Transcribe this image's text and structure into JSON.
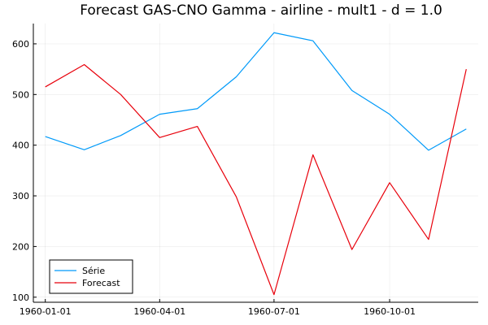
{
  "chart_data": {
    "type": "line",
    "title": "Forecast GAS-CNO Gamma - airline - mult1 - d = 1.0",
    "xlabel": "",
    "ylabel": "",
    "x": [
      "1960-01-01",
      "1960-02-01",
      "1960-03-01",
      "1960-04-01",
      "1960-05-01",
      "1960-06-01",
      "1960-07-01",
      "1960-08-01",
      "1960-09-01",
      "1960-10-01",
      "1960-11-01",
      "1960-12-01"
    ],
    "x_ticks": [
      "1960-01-01",
      "1960-04-01",
      "1960-07-01",
      "1960-10-01"
    ],
    "y_ticks": [
      100,
      200,
      300,
      400,
      500,
      600
    ],
    "ylim": [
      90,
      640
    ],
    "grid": true,
    "legend_position": "bottom-left",
    "series": [
      {
        "name": "Série",
        "color": "#009af9",
        "values": [
          417,
          391,
          419,
          461,
          472,
          535,
          622,
          606,
          508,
          461,
          390,
          432
        ]
      },
      {
        "name": "Forecast",
        "color": "#e8000b",
        "values": [
          515,
          559,
          500,
          415,
          437,
          298,
          105,
          381,
          194,
          326,
          214,
          550
        ]
      }
    ]
  }
}
